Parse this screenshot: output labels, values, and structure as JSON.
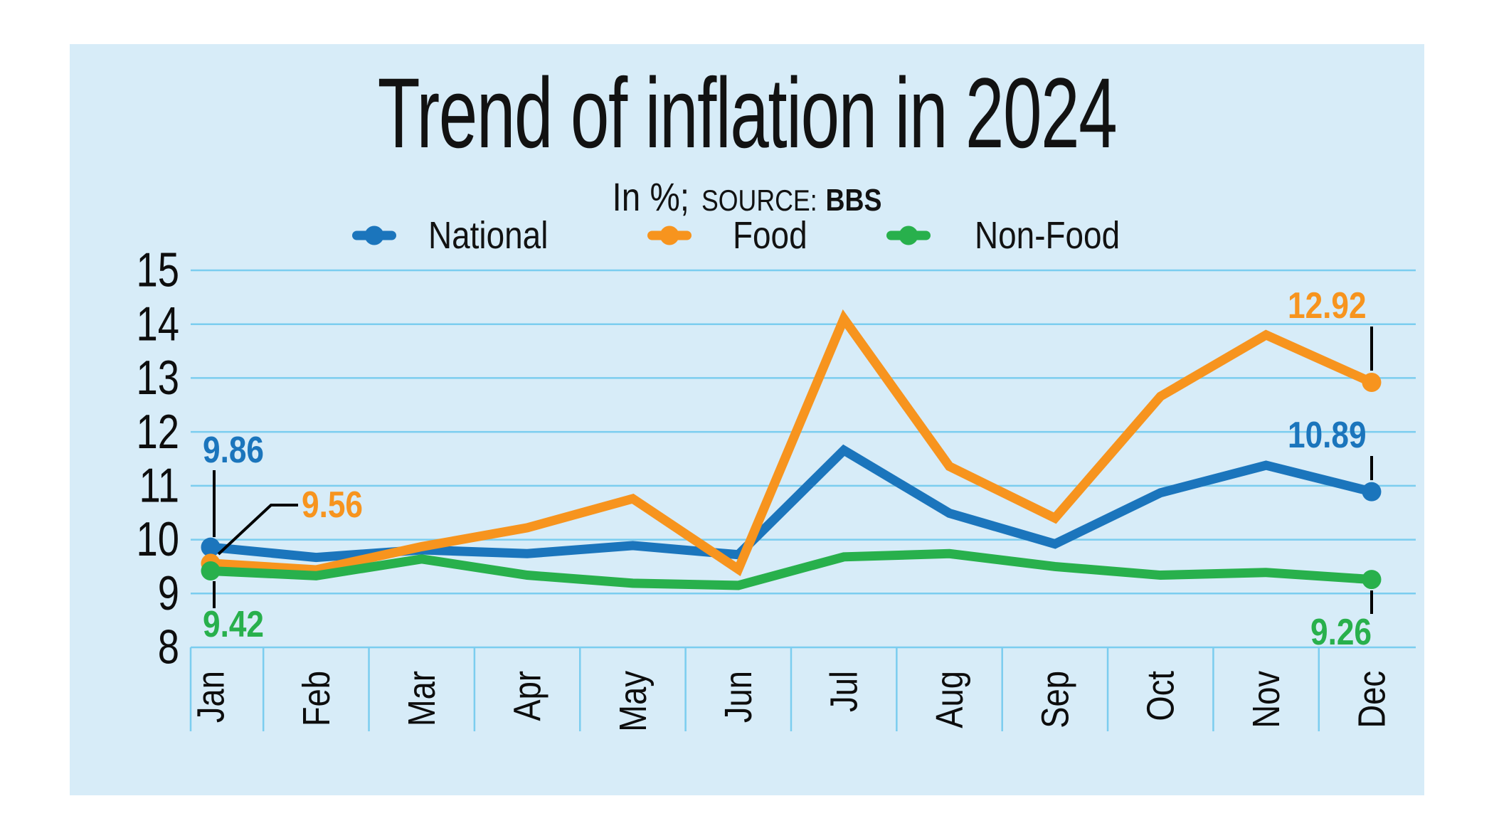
{
  "title": "Trend of inflation in 2024",
  "subtitle": {
    "lead": "In %;",
    "source_label": "SOURCE:",
    "source_value": "BBS"
  },
  "colors": {
    "card_background": "#d7ecf8",
    "gridline": "#7bcdef",
    "ink": "#121212",
    "callout": "#000000",
    "national_blue": "#1b75bc",
    "food_orange": "#f7941e",
    "nonfood_green": "#28b04c"
  },
  "chart_data": {
    "type": "line",
    "title": "Trend of inflation in 2024",
    "subtitle": "In %; SOURCE: BBS",
    "categories": [
      "Jan",
      "Feb",
      "Mar",
      "Apr",
      "May",
      "Jun",
      "Jul",
      "Aug",
      "Sep",
      "Oct",
      "Nov",
      "Dec"
    ],
    "series": [
      {
        "name": "National",
        "color": "#1b75bc",
        "values": [
          9.86,
          9.67,
          9.81,
          9.74,
          9.89,
          9.72,
          11.66,
          10.49,
          9.92,
          10.87,
          11.38,
          10.89
        ],
        "marker_months": [
          "Jan",
          "Dec"
        ]
      },
      {
        "name": "Food",
        "color": "#f7941e",
        "values": [
          9.56,
          9.44,
          9.87,
          10.22,
          10.76,
          9.45,
          14.1,
          11.36,
          10.4,
          12.66,
          13.8,
          12.92
        ],
        "marker_months": [
          "Jan",
          "Dec"
        ]
      },
      {
        "name": "Non-Food",
        "color": "#28b04c",
        "values": [
          9.42,
          9.33,
          9.64,
          9.34,
          9.19,
          9.15,
          9.68,
          9.74,
          9.5,
          9.34,
          9.39,
          9.26
        ],
        "marker_months": [
          "Jan",
          "Dec"
        ]
      }
    ],
    "ylim": [
      8,
      15
    ],
    "y_ticks": [
      15,
      14,
      13,
      12,
      11,
      10,
      9,
      8
    ],
    "grid": "horizontal",
    "legend_position": "top",
    "annotations": [
      {
        "series": "National",
        "month": "Jan",
        "text": "9.86"
      },
      {
        "series": "Food",
        "month": "Jan",
        "text": "9.56"
      },
      {
        "series": "Non-Food",
        "month": "Jan",
        "text": "9.42"
      },
      {
        "series": "Food",
        "month": "Dec",
        "text": "12.92"
      },
      {
        "series": "National",
        "month": "Dec",
        "text": "10.89"
      },
      {
        "series": "Non-Food",
        "month": "Dec",
        "text": "9.26"
      }
    ]
  }
}
